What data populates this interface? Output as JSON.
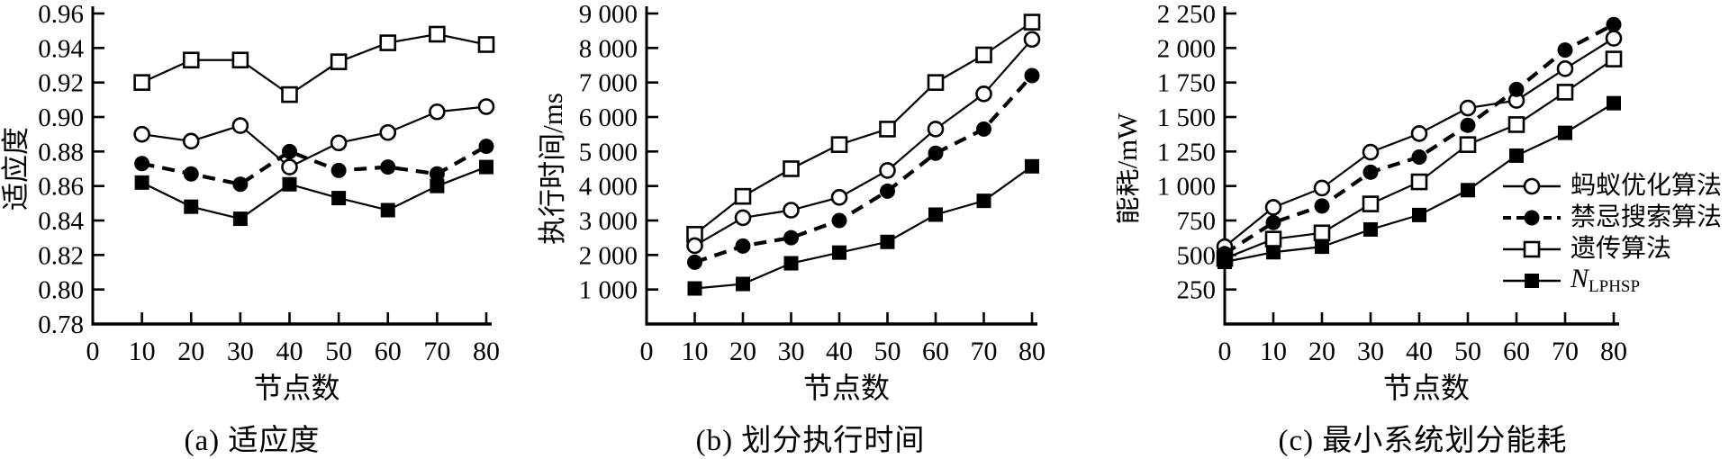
{
  "page": {
    "background": "#ffffff",
    "ink": "#000000"
  },
  "legend": {
    "items": [
      {
        "label": "蚂蚁优化算法",
        "marker": "open-circle",
        "line": "solid"
      },
      {
        "label": "禁忌搜索算法",
        "marker": "filled-circle",
        "line": "dashed"
      },
      {
        "label": "遗传算法",
        "marker": "open-square",
        "line": "solid"
      },
      {
        "label": "N",
        "label_sub": "LPHSP",
        "label_italic": true,
        "marker": "filled-square",
        "line": "solid"
      }
    ]
  },
  "chart_data": [
    {
      "id": "a",
      "type": "line",
      "caption": "(a) 适应度",
      "xlabel": "节点数",
      "ylabel": "适应度",
      "xlim": [
        0,
        80
      ],
      "ylim": [
        0.78,
        0.96
      ],
      "xtick_values": [
        0,
        10,
        20,
        30,
        40,
        50,
        60,
        70,
        80
      ],
      "xtick_labels": [
        "0",
        "10",
        "20",
        "30",
        "40",
        "50",
        "60",
        "70",
        "80"
      ],
      "ytick_values": [
        0.78,
        0.8,
        0.82,
        0.84,
        0.86,
        0.88,
        0.9,
        0.92,
        0.94,
        0.96
      ],
      "ytick_labels": [
        "0.78",
        "0.80",
        "0.82",
        "0.84",
        "0.86",
        "0.88",
        "0.90",
        "0.92",
        "0.94",
        "0.96"
      ],
      "x": [
        10,
        20,
        30,
        40,
        50,
        60,
        70,
        80
      ],
      "series": [
        {
          "name": "遗传算法",
          "marker": "open-square",
          "line": "solid",
          "values": [
            0.92,
            0.933,
            0.933,
            0.913,
            0.932,
            0.943,
            0.948,
            0.942
          ]
        },
        {
          "name": "蚂蚁优化算法",
          "marker": "open-circle",
          "line": "solid",
          "values": [
            0.89,
            0.886,
            0.895,
            0.871,
            0.885,
            0.891,
            0.903,
            0.906
          ]
        },
        {
          "name": "禁忌搜索算法",
          "marker": "filled-circle",
          "line": "dashed",
          "values": [
            0.873,
            0.867,
            0.861,
            0.88,
            0.869,
            0.871,
            0.867,
            0.883
          ]
        },
        {
          "name": "NLPHSP",
          "marker": "filled-square",
          "line": "solid",
          "values": [
            0.862,
            0.848,
            0.841,
            0.861,
            0.853,
            0.846,
            0.86,
            0.871
          ]
        }
      ]
    },
    {
      "id": "b",
      "type": "line",
      "caption": "(b) 划分执行时间",
      "xlabel": "节点数",
      "ylabel": "执行时间/ms",
      "xlim": [
        0,
        80
      ],
      "ylim": [
        0,
        9000
      ],
      "xtick_values": [
        0,
        10,
        20,
        30,
        40,
        50,
        60,
        70,
        80
      ],
      "xtick_labels": [
        "0",
        "10",
        "20",
        "30",
        "40",
        "50",
        "60",
        "70",
        "80"
      ],
      "ytick_values": [
        1000,
        2000,
        3000,
        4000,
        5000,
        6000,
        7000,
        8000,
        9000
      ],
      "ytick_labels": [
        "1 000",
        "2 000",
        "3 000",
        "4 000",
        "5 000",
        "6 000",
        "7 000",
        "8 000",
        "9 000"
      ],
      "x": [
        10,
        20,
        30,
        40,
        50,
        60,
        70,
        80
      ],
      "series": [
        {
          "name": "遗传算法",
          "marker": "open-square",
          "line": "solid",
          "values": [
            2600,
            3700,
            4500,
            5200,
            5650,
            7000,
            7800,
            8750
          ]
        },
        {
          "name": "蚂蚁优化算法",
          "marker": "open-circle",
          "line": "solid",
          "values": [
            2270,
            3080,
            3300,
            3670,
            4450,
            5650,
            6670,
            8250
          ]
        },
        {
          "name": "禁忌搜索算法",
          "marker": "filled-circle",
          "line": "dashed",
          "values": [
            1790,
            2260,
            2500,
            3000,
            3850,
            4950,
            5650,
            7200
          ]
        },
        {
          "name": "NLPHSP",
          "marker": "filled-square",
          "line": "solid",
          "values": [
            1030,
            1160,
            1760,
            2070,
            2380,
            3170,
            3570,
            4570
          ]
        }
      ]
    },
    {
      "id": "c",
      "type": "line",
      "caption": "(c) 最小系统划分能耗",
      "xlabel": "节点数",
      "ylabel": "能耗/mW",
      "xlim": [
        0,
        80
      ],
      "ylim": [
        0,
        2250
      ],
      "xtick_values": [
        0,
        10,
        20,
        30,
        40,
        50,
        60,
        70,
        80
      ],
      "xtick_labels": [
        "0",
        "10",
        "20",
        "30",
        "40",
        "50",
        "60",
        "70",
        "80"
      ],
      "ytick_values": [
        250,
        500,
        750,
        1000,
        1250,
        1500,
        1750,
        2000,
        2250
      ],
      "ytick_labels": [
        "250",
        "500",
        "750",
        "1 000",
        "1 250",
        "1 500",
        "1 750",
        "2 000",
        "2 250"
      ],
      "x": [
        0,
        10,
        20,
        30,
        40,
        50,
        60,
        70,
        80
      ],
      "series": [
        {
          "name": "遗传算法",
          "marker": "open-square",
          "line": "solid",
          "values": [
            475,
            615,
            660,
            870,
            1030,
            1300,
            1445,
            1680,
            1920
          ]
        },
        {
          "name": "蚂蚁优化算法",
          "marker": "open-circle",
          "line": "solid",
          "values": [
            560,
            845,
            985,
            1245,
            1380,
            1565,
            1620,
            1850,
            2070
          ]
        },
        {
          "name": "禁忌搜索算法",
          "marker": "filled-circle",
          "line": "dashed",
          "values": [
            510,
            735,
            855,
            1100,
            1210,
            1440,
            1700,
            1985,
            2170
          ]
        },
        {
          "name": "NLPHSP",
          "marker": "filled-square",
          "line": "solid",
          "values": [
            450,
            520,
            560,
            685,
            790,
            970,
            1220,
            1385,
            1600
          ]
        }
      ]
    }
  ]
}
